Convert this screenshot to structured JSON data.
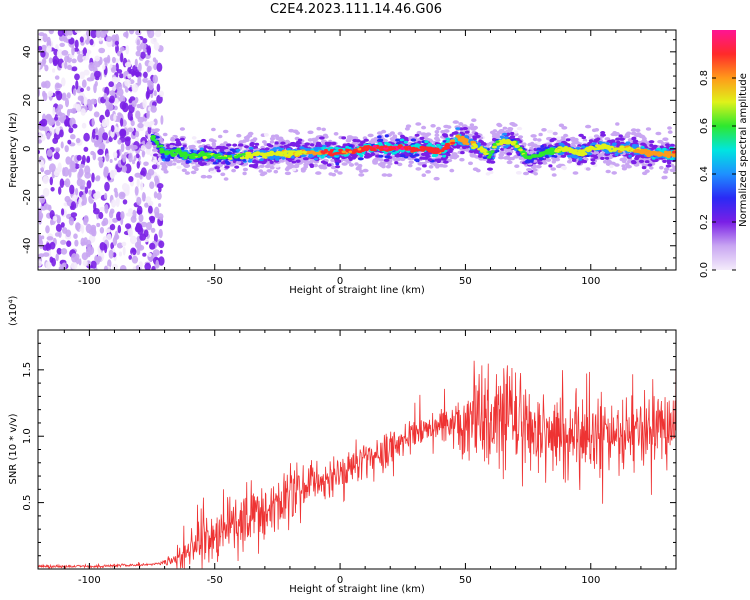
{
  "title": "C2E4.2023.111.14.46.G06",
  "chart_data": [
    {
      "type": "heatmap",
      "xlabel": "Height of straight line (km)",
      "ylabel": "Frequency (Hz)",
      "xlim": [
        -120.5,
        134
      ],
      "ylim": [
        -50,
        49
      ],
      "xticks": [
        -100,
        -50,
        0,
        50,
        100
      ],
      "yticks": [
        -40,
        -20,
        0,
        20,
        40
      ],
      "colorbar": {
        "label": "Normalized spectral amplitude",
        "range": [
          0,
          1
        ],
        "ticks": [
          "0.0",
          "0.2",
          "0.4",
          "0.6",
          "0.8"
        ],
        "tick_values": [
          0.0,
          0.2,
          0.4,
          0.6,
          0.8
        ],
        "colors": [
          "#f4ecfb",
          "#c9a6f2",
          "#7a1fe6",
          "#2a2af5",
          "#1e90ff",
          "#00e5e0",
          "#2ee82e",
          "#dff21a",
          "#ff9a1a",
          "#ff2a2a",
          "#ff1493"
        ]
      },
      "noise_region_km": [
        -120.5,
        -73
      ],
      "ridge": {
        "x": [
          -75,
          -70,
          -65,
          -60,
          -55,
          -50,
          -45,
          -40,
          -35,
          -30,
          -25,
          -20,
          -15,
          -10,
          -5,
          0,
          5,
          10,
          15,
          20,
          25,
          30,
          35,
          40,
          45,
          47,
          50,
          55,
          60,
          62,
          65,
          70,
          75,
          80,
          85,
          90,
          95,
          100,
          105,
          110,
          115,
          120,
          125,
          130,
          134
        ],
        "y": [
          5,
          -2,
          -1,
          -3,
          -2.5,
          -3,
          -3.5,
          -3,
          -2.5,
          -2.5,
          -2,
          -2,
          -1.5,
          -1.5,
          -1.5,
          -1.5,
          -1,
          0,
          0.5,
          0,
          0.5,
          0,
          0,
          -1,
          3,
          5,
          3,
          1,
          -3,
          2,
          3,
          2,
          -4,
          -2,
          -1,
          0,
          -2,
          0,
          1,
          0,
          0,
          -1,
          -2,
          -2,
          -2
        ],
        "amplitude": [
          0.55,
          0.6,
          0.6,
          0.62,
          0.62,
          0.65,
          0.62,
          0.65,
          0.68,
          0.7,
          0.7,
          0.72,
          0.75,
          0.82,
          0.85,
          0.88,
          0.87,
          0.9,
          0.93,
          0.93,
          0.93,
          0.92,
          0.9,
          0.88,
          0.85,
          0.8,
          0.78,
          0.72,
          0.62,
          0.65,
          0.68,
          0.65,
          0.6,
          0.6,
          0.62,
          0.72,
          0.7,
          0.68,
          0.7,
          0.72,
          0.75,
          0.78,
          0.8,
          0.82,
          0.82
        ]
      }
    },
    {
      "type": "line",
      "xlabel": "Height of straight line (km)",
      "ylabel": "SNR (10 * v/v)",
      "scale_label": "(x10⁴)",
      "xlim": [
        -120.5,
        134
      ],
      "ylim": [
        0,
        1.8
      ],
      "xticks": [
        -100,
        -50,
        0,
        50,
        100
      ],
      "yticks": [
        0.5,
        1.0,
        1.5
      ],
      "ytick_labels": [
        "0.5",
        "1.0",
        "1.5"
      ],
      "color": "#ee3333",
      "envelope": {
        "x": [
          -120,
          -100,
          -80,
          -72,
          -66,
          -62,
          -58,
          -50,
          -40,
          -30,
          -20,
          -10,
          0,
          10,
          20,
          30,
          40,
          50,
          60,
          70,
          80,
          90,
          100,
          110,
          120,
          134
        ],
        "mean": [
          0.02,
          0.02,
          0.03,
          0.04,
          0.08,
          0.15,
          0.2,
          0.25,
          0.35,
          0.45,
          0.55,
          0.65,
          0.72,
          0.82,
          0.92,
          1.02,
          1.08,
          1.12,
          1.15,
          1.12,
          1.05,
          1.02,
          1.0,
          1.02,
          1.05,
          1.05
        ],
        "spread": [
          0.01,
          0.01,
          0.01,
          0.01,
          0.05,
          0.15,
          0.15,
          0.2,
          0.18,
          0.2,
          0.18,
          0.15,
          0.12,
          0.12,
          0.12,
          0.1,
          0.08,
          0.25,
          0.35,
          0.32,
          0.3,
          0.28,
          0.25,
          0.25,
          0.25,
          0.25
        ]
      }
    }
  ]
}
